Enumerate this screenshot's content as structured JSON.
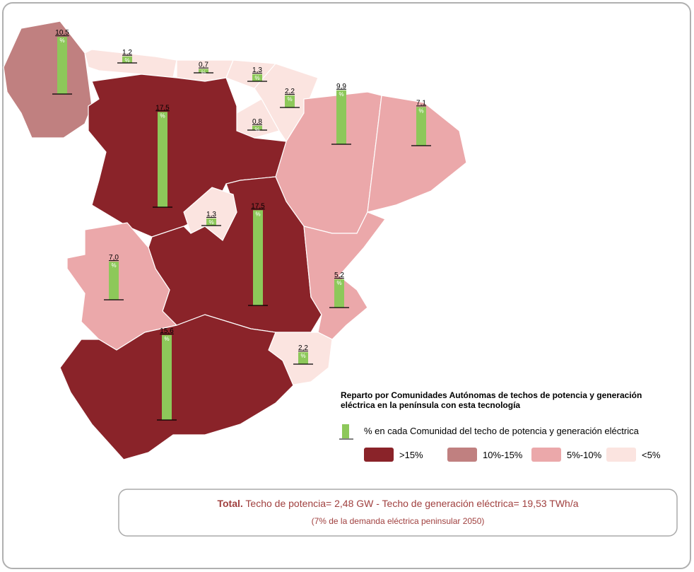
{
  "bars": {
    "values": [
      10.5,
      1.2,
      0.7,
      1.3,
      2.2,
      0.8,
      9.9,
      7.1,
      17.5,
      1.3,
      17.5,
      7.0,
      5.2,
      2.2,
      15.6
    ],
    "value_labels": [
      "10,5",
      "1,2",
      "0,7",
      "1,3",
      "2,2",
      "0,8",
      "9,9",
      "7,1",
      "17,5",
      "1,3",
      "17,5",
      "7,0",
      "5,2",
      "2,2",
      "15,6"
    ],
    "unit_mark": "%",
    "color": "#8dc85a"
  },
  "legend": {
    "title": "Reparto por Comunidades Autónomas de techos de potencia y generación eléctrica en la península con esta tecnología",
    "bar_item_pre": "% en cada Comunidad del",
    "bar_item_rest": "techo de potencia y generación eléctrica",
    "classes": [
      {
        "label": ">15%",
        "color": "#8a2329"
      },
      {
        "label": "10%-15%",
        "color": "#c08080"
      },
      {
        "label": "5%-10%",
        "color": "#eba8aa"
      },
      {
        "label": "<5%",
        "color": "#fbe4e0"
      }
    ]
  },
  "total": {
    "lead": "Total.",
    "text": "Techo de potencia= 2,48 GW - Techo de generación eléctrica= 19,53 TWh/a",
    "note": "(7% de la demanda eléctrica peninsular 2050)"
  }
}
